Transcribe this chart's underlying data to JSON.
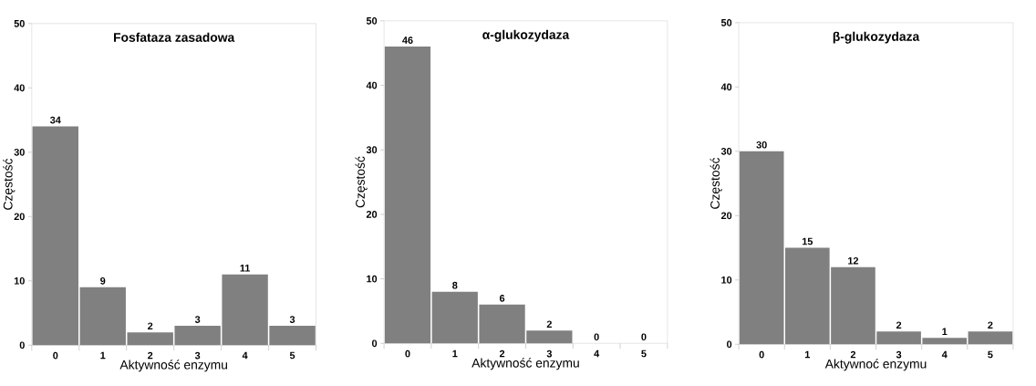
{
  "chart_data": [
    {
      "type": "bar",
      "title": "Fosfataza zasadowa",
      "xlabel": "Aktywność enzymu",
      "ylabel": "Częstość",
      "categories": [
        "0",
        "1",
        "2",
        "3",
        "4",
        "5"
      ],
      "values": [
        34,
        9,
        2,
        3,
        11,
        3
      ],
      "color": "#808080",
      "ylim": [
        0,
        50
      ],
      "yticks": [
        0,
        10,
        20,
        30,
        40,
        50
      ],
      "data_labels": true
    },
    {
      "type": "bar",
      "title": "α-glukozydaza",
      "xlabel": "Aktywność enzymu",
      "ylabel": "Częstość",
      "categories": [
        "0",
        "1",
        "2",
        "3",
        "4",
        "5"
      ],
      "values": [
        46,
        8,
        6,
        2,
        0,
        0
      ],
      "color": "#808080",
      "ylim": [
        0,
        50
      ],
      "yticks": [
        0,
        10,
        20,
        30,
        40,
        50
      ],
      "data_labels": true
    },
    {
      "type": "bar",
      "title": "β-glukozydaza",
      "xlabel": "Aktywnoć enzymu",
      "ylabel": "Częstość",
      "categories": [
        "0",
        "1",
        "2",
        "3",
        "4",
        "5"
      ],
      "values": [
        30,
        15,
        12,
        2,
        1,
        2
      ],
      "color": "#808080",
      "ylim": [
        0,
        50
      ],
      "yticks": [
        0,
        10,
        20,
        30,
        40,
        50
      ],
      "data_labels": true
    }
  ]
}
